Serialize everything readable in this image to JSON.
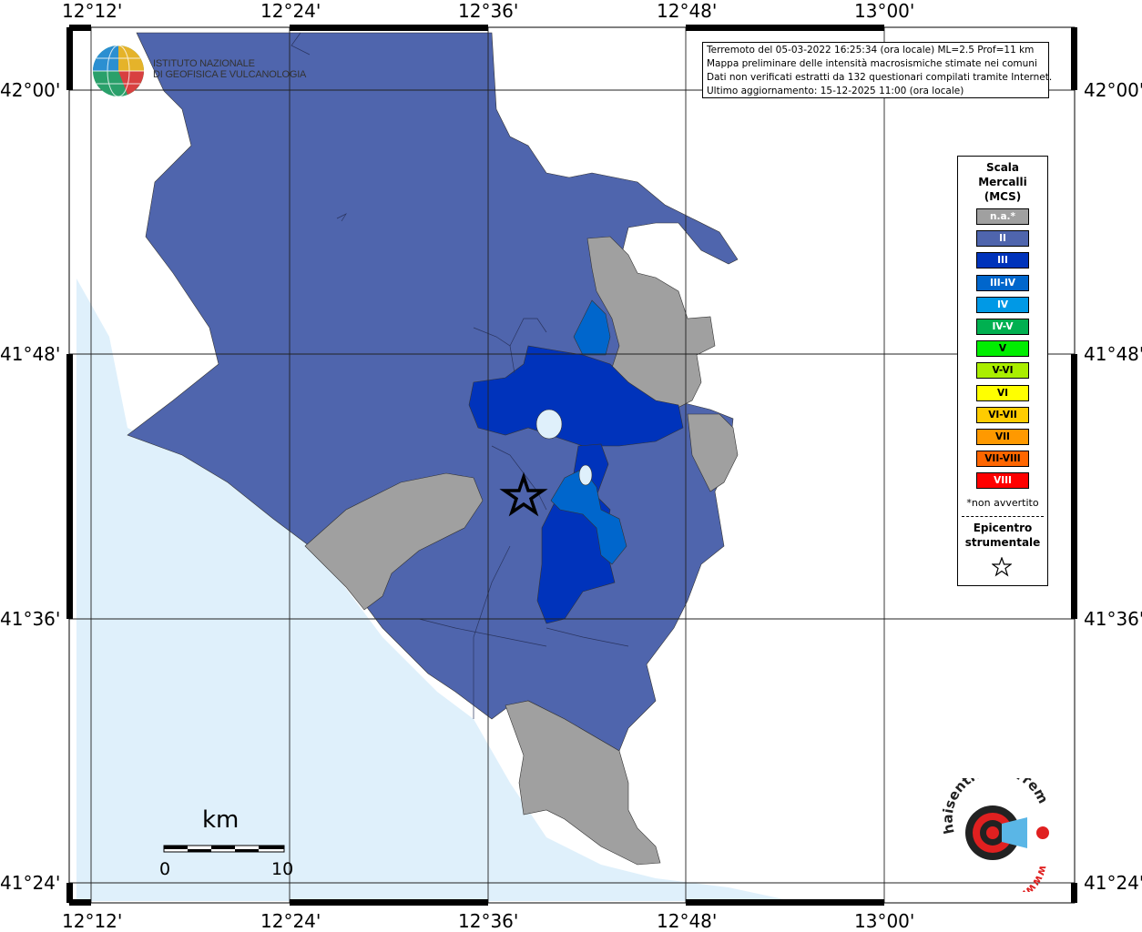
{
  "info": {
    "line1": "Terremoto del 05-03-2022 16:25:34 (ora locale) ML=2.5 Prof=11 km",
    "line2": "Mappa preliminare delle intensità macrosismiche stimate nei comuni",
    "line3": "Dati non verificati estratti da 132 questionari compilati tramite Internet.",
    "line4": "Ultimo aggiornamento: 15-12-2025 11:00 (ora locale)"
  },
  "institute": {
    "line1": "ISTITUTO NAZIONALE",
    "line2": "DI GEOFISICA E VULCANOLOGIA"
  },
  "lon_labels": [
    "12°12'",
    "12°24'",
    "12°36'",
    "12°48'",
    "13°00'"
  ],
  "lat_labels": [
    "42°00'",
    "41°48'",
    "41°36'",
    "41°24'"
  ],
  "legend": {
    "title1": "Scala",
    "title2": "Mercalli",
    "title3": "(MCS)",
    "items": [
      {
        "label": "n.a.*",
        "color": "#a0a0a0"
      },
      {
        "label": "II",
        "color": "#4f65ad"
      },
      {
        "label": "III",
        "color": "#0033bb"
      },
      {
        "label": "III-IV",
        "color": "#0066cc"
      },
      {
        "label": "IV",
        "color": "#0099e6"
      },
      {
        "label": "IV-V",
        "color": "#00b050"
      },
      {
        "label": "V",
        "color": "#00ee00"
      },
      {
        "label": "V-VI",
        "color": "#aaee00"
      },
      {
        "label": "VI",
        "color": "#ffff00"
      },
      {
        "label": "VI-VII",
        "color": "#ffcc00"
      },
      {
        "label": "VII",
        "color": "#ff9900"
      },
      {
        "label": "VII-VIII",
        "color": "#ff6600"
      },
      {
        "label": "VIII",
        "color": "#ff0000"
      }
    ],
    "note": "*non avvertito",
    "epi1": "Epicentro",
    "epi2": "strumentale"
  },
  "scale": {
    "unit": "km",
    "tick0": "0",
    "tick10": "10"
  },
  "logo": {
    "text": "haisentitoilterremoto.it",
    "url": "www."
  },
  "colors": {
    "sea": "#dff0fb",
    "not_felt": "#a0a0a0",
    "intensity_II": "#4f65ad",
    "intensity_III": "#0033bb",
    "intensity_III_IV": "#0066cc"
  }
}
